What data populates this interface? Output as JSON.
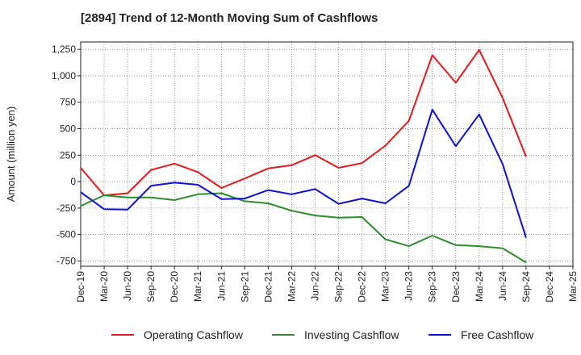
{
  "chart_data": {
    "type": "line",
    "title": "[2894]  Trend of 12-Month Moving Sum of Cashflows",
    "ylabel": "Amount (million yen)",
    "xlabel": "",
    "ylim": [
      -800,
      1320
    ],
    "yticks": [
      1250,
      1000,
      750,
      500,
      250,
      0,
      -250,
      -500,
      -750
    ],
    "ytick_labels": [
      "1,250",
      "1,000",
      "750",
      "500",
      "250",
      "0",
      "-250",
      "-500",
      "-750"
    ],
    "x": [
      "Dec-19",
      "Mar-20",
      "Jun-20",
      "Sep-20",
      "Dec-20",
      "Mar-21",
      "Jun-21",
      "Sep-21",
      "Dec-21",
      "Mar-22",
      "Jun-22",
      "Sep-22",
      "Dec-22",
      "Mar-23",
      "Jun-23",
      "Sep-23",
      "Dec-23",
      "Mar-24",
      "Jun-24",
      "Sep-24",
      "Dec-24",
      "Mar-25"
    ],
    "grid": true,
    "legend_position": "bottom",
    "series": [
      {
        "name": "Operating Cashflow",
        "color": "#e41a1c",
        "values": [
          130,
          -130,
          -110,
          110,
          170,
          90,
          -60,
          30,
          125,
          155,
          250,
          130,
          175,
          340,
          575,
          1195,
          935,
          1245,
          790,
          235,
          null,
          null
        ]
      },
      {
        "name": "Investing Cashflow",
        "color": "#2e8b2e",
        "values": [
          -230,
          -130,
          -150,
          -150,
          -175,
          -120,
          -110,
          -185,
          -205,
          -275,
          -320,
          -340,
          -335,
          -545,
          -610,
          -510,
          -600,
          -610,
          -630,
          -765,
          null,
          null
        ]
      },
      {
        "name": "Free Cashflow",
        "color": "#1010d0",
        "values": [
          -100,
          -260,
          -265,
          -40,
          -10,
          -30,
          -165,
          -160,
          -80,
          -120,
          -70,
          -210,
          -160,
          -205,
          -40,
          680,
          335,
          635,
          165,
          -530,
          null,
          null
        ]
      }
    ]
  }
}
